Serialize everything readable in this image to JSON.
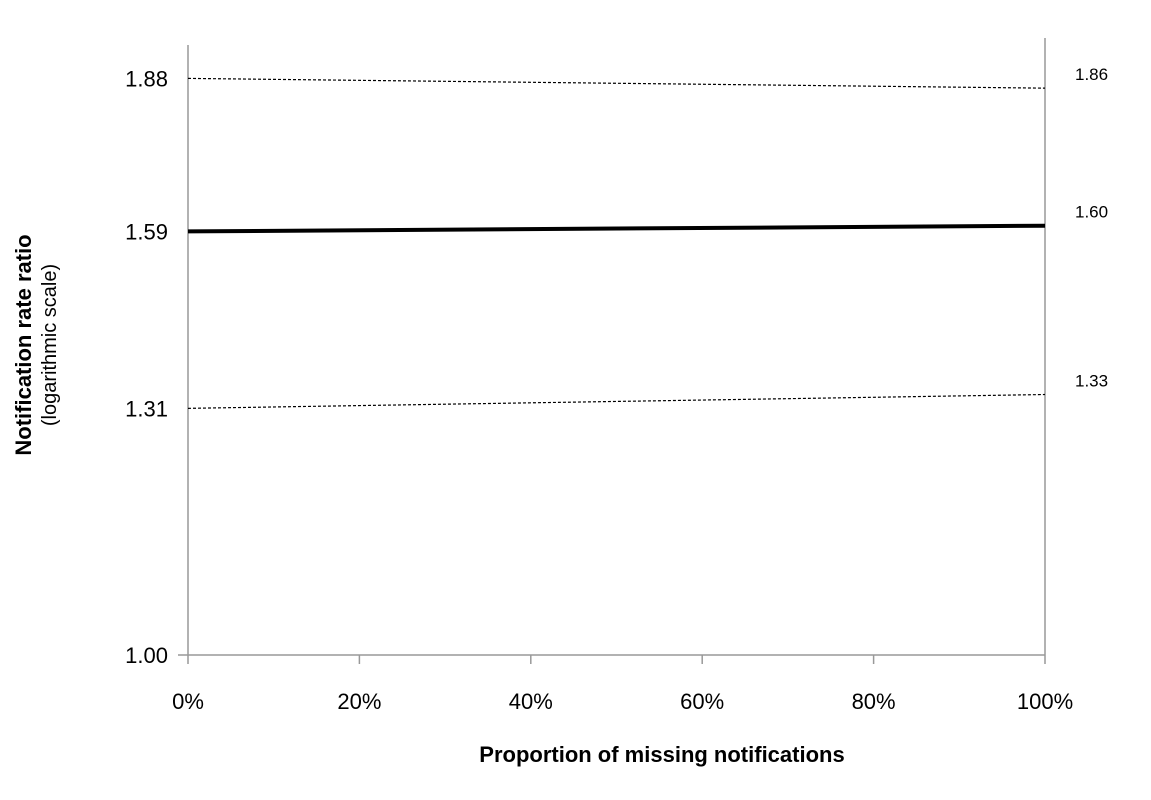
{
  "chart_data": {
    "type": "line",
    "xlabel": "Proportion of missing notifications",
    "ylabel": "Notification rate ratio",
    "ylabel_sub": "(logarithmic scale)",
    "y_scale": "log",
    "ylim": [
      1.0,
      1.95
    ],
    "xlim": [
      0,
      100
    ],
    "x_ticks": [
      0,
      20,
      40,
      60,
      80,
      100
    ],
    "x_tick_labels": [
      "0%",
      "20%",
      "40%",
      "60%",
      "80%",
      "100%"
    ],
    "y_ticks": [
      1.0,
      1.31,
      1.59,
      1.88
    ],
    "y_tick_labels": [
      "1.00",
      "1.31",
      "1.59",
      "1.88"
    ],
    "grid": false,
    "series": [
      {
        "values": [
          [
            0,
            1.88
          ],
          [
            100,
            1.86
          ]
        ],
        "end_label": "1.86",
        "style": "dotted"
      },
      {
        "values": [
          [
            0,
            1.59
          ],
          [
            100,
            1.6
          ]
        ],
        "end_label": "1.60",
        "style": "bold"
      },
      {
        "values": [
          [
            0,
            1.31
          ],
          [
            100,
            1.33
          ]
        ],
        "end_label": "1.33",
        "style": "dotted"
      }
    ]
  },
  "colors": {
    "line": "#000000",
    "axis": "#999999"
  }
}
